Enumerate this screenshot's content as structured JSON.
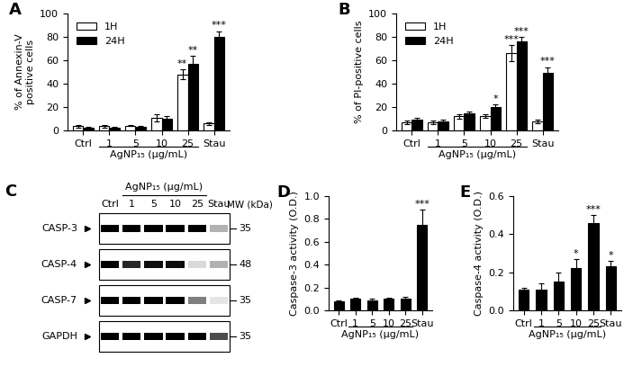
{
  "chart_data": [
    {
      "type": "bar",
      "panel": "A",
      "y_label": "% of Annexin-V\npositive cells",
      "categories": [
        "Ctrl",
        "1",
        "5",
        "10",
        "25",
        "Stau"
      ],
      "group_label": "AgNP₁₅ (μg/mL)",
      "group_categories": [
        "1",
        "5",
        "10",
        "25"
      ],
      "series": [
        {
          "name": "1H",
          "color": "#ffffff",
          "values": [
            3.5,
            3.5,
            4,
            11,
            48,
            6
          ],
          "errors": [
            1,
            1,
            0.5,
            3,
            4,
            1
          ],
          "significance": [
            null,
            null,
            null,
            null,
            "**",
            null
          ]
        },
        {
          "name": "24H",
          "color": "#000000",
          "values": [
            2.5,
            2.5,
            3,
            10,
            57,
            80
          ],
          "errors": [
            0.5,
            0.5,
            0.5,
            2,
            7,
            5
          ],
          "significance": [
            null,
            null,
            null,
            null,
            "**",
            "***"
          ]
        }
      ],
      "ylim": [
        0,
        100
      ],
      "yticks": [
        0,
        20,
        40,
        60,
        80,
        100
      ],
      "legend": "upper left"
    },
    {
      "type": "bar",
      "panel": "B",
      "y_label": "% of PI-positive cells",
      "categories": [
        "Ctrl",
        "1",
        "5",
        "10",
        "25",
        "Stau"
      ],
      "group_label": "AgNP₁₅ (μg/mL)",
      "group_categories": [
        "1",
        "5",
        "10",
        "25"
      ],
      "series": [
        {
          "name": "1H",
          "color": "#ffffff",
          "values": [
            7,
            7,
            12,
            12,
            66,
            8
          ],
          "errors": [
            1.5,
            1.5,
            2,
            1.5,
            7,
            1.5
          ],
          "significance": [
            null,
            null,
            null,
            null,
            "***",
            null
          ]
        },
        {
          "name": "24H",
          "color": "#000000",
          "values": [
            9,
            8,
            15,
            20,
            76,
            49
          ],
          "errors": [
            1.5,
            1,
            1.5,
            2,
            4,
            5
          ],
          "significance": [
            null,
            null,
            null,
            "*",
            "***",
            "***"
          ]
        }
      ],
      "ylim": [
        0,
        100
      ],
      "yticks": [
        0,
        20,
        40,
        60,
        80,
        100
      ],
      "legend": "upper left"
    },
    {
      "type": "blot",
      "panel": "C",
      "lanes": [
        "Ctrl",
        "1",
        "5",
        "10",
        "25",
        "Stau"
      ],
      "group_label": "AgNP₁₅ (μg/mL)",
      "group_categories": [
        "1",
        "5",
        "10",
        "25"
      ],
      "mw_label": "MW (kDa)",
      "bands": [
        {
          "name": "CASP-3",
          "mw": 35,
          "intensity": [
            1.0,
            1.0,
            1.0,
            1.0,
            1.0,
            0.3
          ]
        },
        {
          "name": "CASP-4",
          "mw": 48,
          "intensity": [
            1.0,
            0.85,
            0.95,
            0.95,
            0.15,
            0.3
          ]
        },
        {
          "name": "CASP-7",
          "mw": 35,
          "intensity": [
            1.0,
            1.0,
            1.0,
            1.0,
            0.5,
            0.1
          ]
        },
        {
          "name": "GAPDH",
          "mw": 35,
          "intensity": [
            1.0,
            1.0,
            1.0,
            1.0,
            1.0,
            0.7
          ]
        }
      ]
    },
    {
      "type": "bar",
      "panel": "D",
      "y_label": "Caspase-3 activity (O.D.)",
      "categories": [
        "Ctrl",
        "1",
        "5",
        "10",
        "25",
        "Stau"
      ],
      "group_label": "AgNP₁₅ (μg/mL)",
      "group_categories": [
        "1",
        "5",
        "10",
        "25"
      ],
      "values": [
        0.08,
        0.1,
        0.09,
        0.1,
        0.1,
        0.75
      ],
      "errors": [
        0.01,
        0.01,
        0.01,
        0.01,
        0.02,
        0.13
      ],
      "significance": [
        null,
        null,
        null,
        null,
        null,
        "***"
      ],
      "color": "#000000",
      "ylim": [
        0.0,
        1.0
      ],
      "yticks": [
        0.0,
        0.2,
        0.4,
        0.6,
        0.8,
        1.0
      ]
    },
    {
      "type": "bar",
      "panel": "E",
      "y_label": "Caspase-4 activity (O.D.)",
      "categories": [
        "Ctrl",
        "1",
        "5",
        "10",
        "25",
        "Stau"
      ],
      "group_label": "AgNP₁₅ (μg/mL)",
      "group_categories": [
        "1",
        "5",
        "10",
        "25"
      ],
      "values": [
        0.11,
        0.11,
        0.15,
        0.22,
        0.46,
        0.23
      ],
      "errors": [
        0.01,
        0.03,
        0.05,
        0.05,
        0.04,
        0.03
      ],
      "significance": [
        null,
        null,
        null,
        "*",
        "***",
        "*"
      ],
      "color": "#000000",
      "ylim": [
        0.0,
        0.6
      ],
      "yticks": [
        0.0,
        0.2,
        0.4,
        0.6
      ]
    }
  ]
}
